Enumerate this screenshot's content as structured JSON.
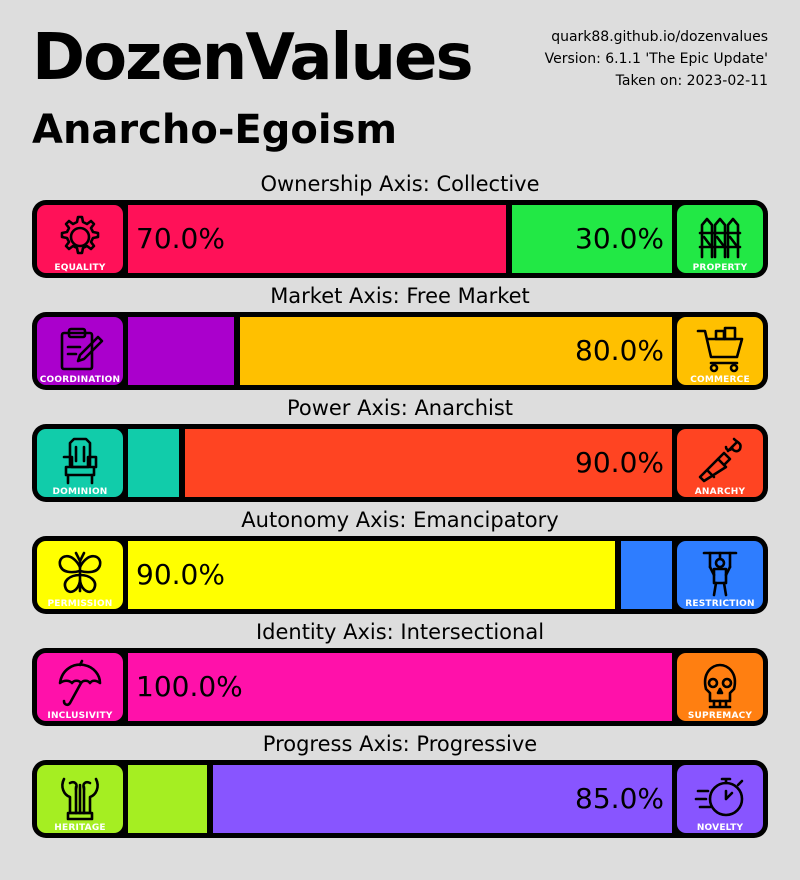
{
  "header": {
    "title": "DozenValues",
    "subtitle": "Anarcho-Egoism",
    "site": "quark88.github.io/dozenvalues",
    "version": "Version: 6.1.1 'The Epic Update'",
    "taken": "Taken on: 2023-02-11"
  },
  "axes": [
    {
      "label": "Ownership Axis: Collective",
      "left": {
        "name": "EQUALITY",
        "icon": "gear-icon",
        "color": "#ff1158",
        "value": 70.0,
        "text": "70.0%"
      },
      "right": {
        "name": "PROPERTY",
        "icon": "fence-icon",
        "color": "#22e845",
        "value": 30.0,
        "text": "30.0%"
      }
    },
    {
      "label": "Market Axis: Free Market",
      "left": {
        "name": "COORDINATION",
        "icon": "clipboard-pencil-icon",
        "color": "#aa00cc",
        "value": 20.0,
        "text": ""
      },
      "right": {
        "name": "COMMERCE",
        "icon": "shopping-cart-icon",
        "color": "#ffc000",
        "value": 80.0,
        "text": "80.0%"
      }
    },
    {
      "label": "Power Axis: Anarchist",
      "left": {
        "name": "DOMINION",
        "icon": "throne-icon",
        "color": "#11ccaa",
        "value": 10.0,
        "text": ""
      },
      "right": {
        "name": "ANARCHY",
        "icon": "molotov-icon",
        "color": "#ff4422",
        "value": 90.0,
        "text": "90.0%"
      }
    },
    {
      "label": "Autonomy Axis: Emancipatory",
      "left": {
        "name": "PERMISSION",
        "icon": "butterfly-icon",
        "color": "#ffff00",
        "value": 90.0,
        "text": "90.0%"
      },
      "right": {
        "name": "RESTRICTION",
        "icon": "puppet-icon",
        "color": "#2e7dff",
        "value": 10.0,
        "text": ""
      }
    },
    {
      "label": "Identity Axis: Intersectional",
      "left": {
        "name": "INCLUSIVITY",
        "icon": "umbrella-icon",
        "color": "#ff11aa",
        "value": 100.0,
        "text": "100.0%"
      },
      "right": {
        "name": "SUPREMACY",
        "icon": "skull-icon",
        "color": "#ff7f11",
        "value": 0.0,
        "text": ""
      }
    },
    {
      "label": "Progress Axis: Progressive",
      "left": {
        "name": "HERITAGE",
        "icon": "lyre-icon",
        "color": "#a5ee22",
        "value": 15.0,
        "text": ""
      },
      "right": {
        "name": "NOVELTY",
        "icon": "stopwatch-icon",
        "color": "#8855ff",
        "value": 85.0,
        "text": "85.0%"
      }
    }
  ]
}
